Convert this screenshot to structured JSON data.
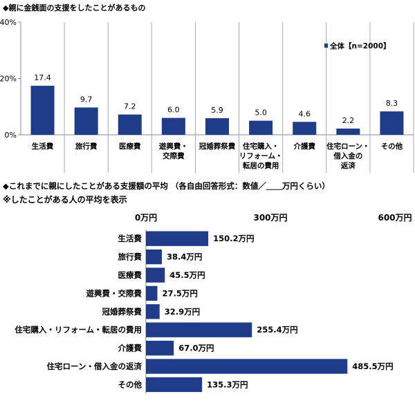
{
  "chart_data": [
    {
      "type": "bar",
      "title": "◆親に金銭面の支援をしたことがあるもの",
      "categories": [
        "生活費",
        "旅行費",
        "医療費",
        "遊興費・\n交際費",
        "冠婚葬祭費",
        "住宅購入・\nリフォーム・\n転居の費用",
        "介護費",
        "住宅ローン・\n借入金の\n返済",
        "その他"
      ],
      "series": [
        {
          "name": "全体【n=2000】",
          "values": [
            17.4,
            9.7,
            7.2,
            6.0,
            5.9,
            5.0,
            4.6,
            2.2,
            8.3
          ]
        }
      ],
      "data_labels": [
        "17.4",
        "9.7",
        "7.2",
        "6.0",
        "5.9",
        "5.0",
        "4.6",
        "2.2",
        "8.3"
      ],
      "yticks": [
        "0%",
        "20%",
        "40%"
      ],
      "ylim": [
        0,
        40
      ],
      "legend": "top-right",
      "color": "#1f3c88"
    },
    {
      "type": "bar",
      "orientation": "horizontal",
      "title": "◆これまでに親にしたことがある支援額の平均 （各自由回答形式：数値／＿＿万円くらい）",
      "subtitle": "※したことがある人の平均を表示",
      "categories": [
        "生活費",
        "旅行費",
        "医療費",
        "遊興費・交際費",
        "冠婚葬祭費",
        "住宅購入・リフォーム・転居の費用",
        "介護費",
        "住宅ローン・借入金の返済",
        "その他"
      ],
      "values": [
        150.2,
        38.4,
        45.5,
        27.5,
        32.9,
        255.4,
        67.0,
        485.5,
        135.3
      ],
      "data_labels": [
        "150.2万円",
        "38.4万円",
        "45.5万円",
        "27.5万円",
        "32.9万円",
        "255.4万円",
        "67.0万円",
        "485.5万円",
        "135.3万円"
      ],
      "xticks": [
        "0万円",
        "300万円",
        "600万円"
      ],
      "xlim": [
        0,
        600
      ],
      "color": "#1f3c88"
    }
  ]
}
